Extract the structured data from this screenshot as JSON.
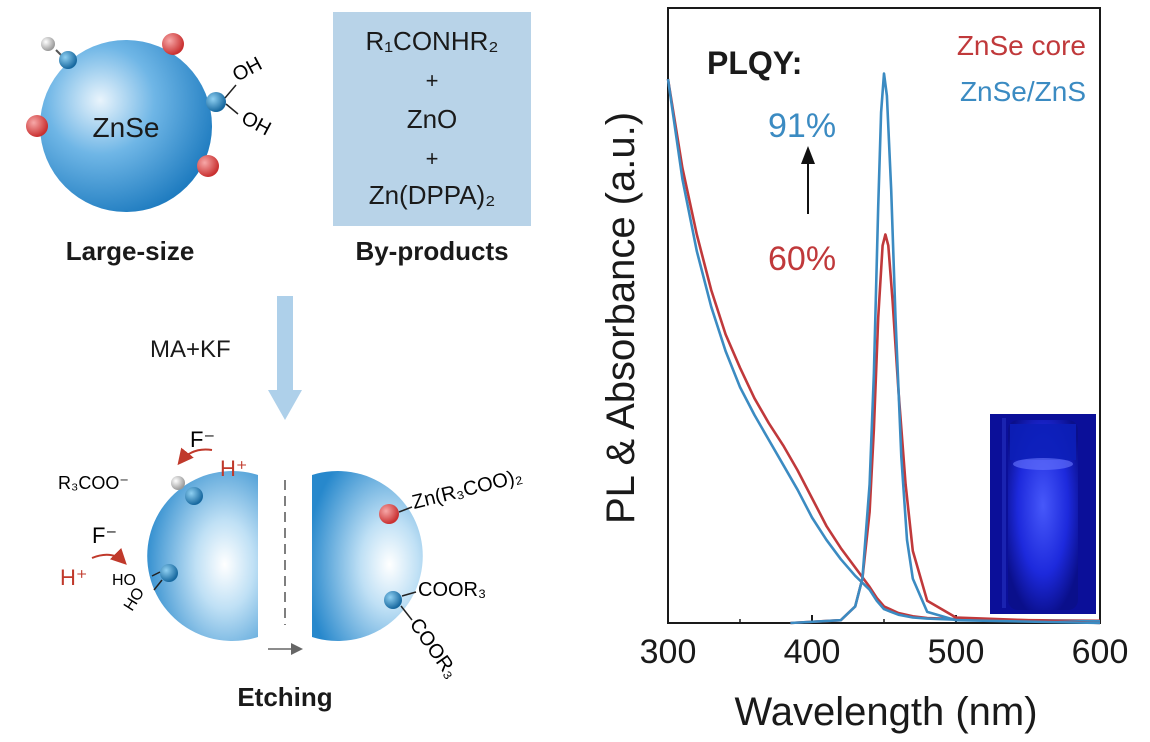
{
  "scheme": {
    "particle_label": "ZnSe",
    "large_size_label": "Large-size",
    "byproducts_label": "By-products",
    "byproducts": [
      "R₁CONHR₂",
      "+",
      "ZnO",
      "+",
      "Zn(DPPA)₂"
    ],
    "oh_labels": [
      "OH",
      "OH"
    ],
    "reagent_label": "MA+KF",
    "etching_label": "Etching",
    "f_minus_top": "F⁻",
    "h_plus_top": "H⁺",
    "r3coo_minus": "R₃COO⁻",
    "f_minus_bottom": "F⁻",
    "h_plus_bottom": "H⁺",
    "ho_labels": [
      "HO",
      "HO"
    ],
    "zn_carboxylate": "Zn(R₃COO)₂",
    "coor3_labels": [
      "COOR₃",
      "COOR₃"
    ],
    "colors": {
      "sphere": "#2f8fd0",
      "red_ligand": "#d84545",
      "blue_ligand": "#1f7fbf",
      "grey_ligand": "#bdbdbd",
      "arrow": "#aed0ea",
      "red_text": "#c0392b"
    }
  },
  "chart_data": {
    "type": "line",
    "xlabel": "Wavelength (nm)",
    "ylabel": "PL & Absorbance (a.u.)",
    "xlim": [
      300,
      600
    ],
    "ylim": [
      0,
      1
    ],
    "x_ticks": [
      300,
      400,
      500,
      600
    ],
    "annotation_title": "PLQY:",
    "plqy_core": "60%",
    "plqy_shell": "91%",
    "legend_position": "top-right",
    "colors": {
      "core": "#c0393b",
      "shell": "#3b8bc2"
    },
    "series": [
      {
        "name": "ZnSe core",
        "kind": "absorbance",
        "x": [
          300,
          310,
          320,
          330,
          340,
          350,
          360,
          370,
          380,
          390,
          400,
          410,
          420,
          430,
          440,
          445,
          450,
          460,
          470,
          480,
          500,
          520,
          550,
          600
        ],
        "y": [
          0.98,
          0.82,
          0.7,
          0.6,
          0.52,
          0.46,
          0.405,
          0.36,
          0.32,
          0.275,
          0.225,
          0.175,
          0.135,
          0.1,
          0.065,
          0.045,
          0.03,
          0.018,
          0.012,
          0.009,
          0.007,
          0.006,
          0.005,
          0.004
        ]
      },
      {
        "name": "ZnSe/ZnS",
        "kind": "absorbance",
        "x": [
          300,
          310,
          320,
          330,
          340,
          350,
          360,
          370,
          380,
          390,
          400,
          410,
          420,
          430,
          440,
          445,
          450,
          460,
          470,
          480,
          500,
          520,
          550,
          600
        ],
        "y": [
          0.98,
          0.8,
          0.67,
          0.57,
          0.49,
          0.425,
          0.375,
          0.33,
          0.285,
          0.24,
          0.19,
          0.15,
          0.115,
          0.085,
          0.06,
          0.04,
          0.025,
          0.015,
          0.01,
          0.008,
          0.006,
          0.005,
          0.004,
          0.003
        ]
      },
      {
        "name": "ZnSe core",
        "kind": "PL",
        "x": [
          385,
          420,
          430,
          435,
          440,
          443,
          446,
          449,
          451,
          453,
          456,
          460,
          465,
          470,
          480,
          500,
          600
        ],
        "y": [
          0.0,
          0.005,
          0.03,
          0.08,
          0.2,
          0.35,
          0.55,
          0.68,
          0.7,
          0.68,
          0.58,
          0.42,
          0.25,
          0.13,
          0.04,
          0.01,
          0.0
        ]
      },
      {
        "name": "ZnSe/ZnS",
        "kind": "PL",
        "x": [
          385,
          420,
          430,
          435,
          440,
          443,
          446,
          448,
          450,
          452,
          455,
          458,
          462,
          466,
          470,
          480,
          500,
          600
        ],
        "y": [
          0.0,
          0.005,
          0.03,
          0.08,
          0.25,
          0.45,
          0.75,
          0.92,
          0.99,
          0.95,
          0.78,
          0.55,
          0.3,
          0.15,
          0.08,
          0.02,
          0.005,
          0.0
        ]
      }
    ]
  }
}
